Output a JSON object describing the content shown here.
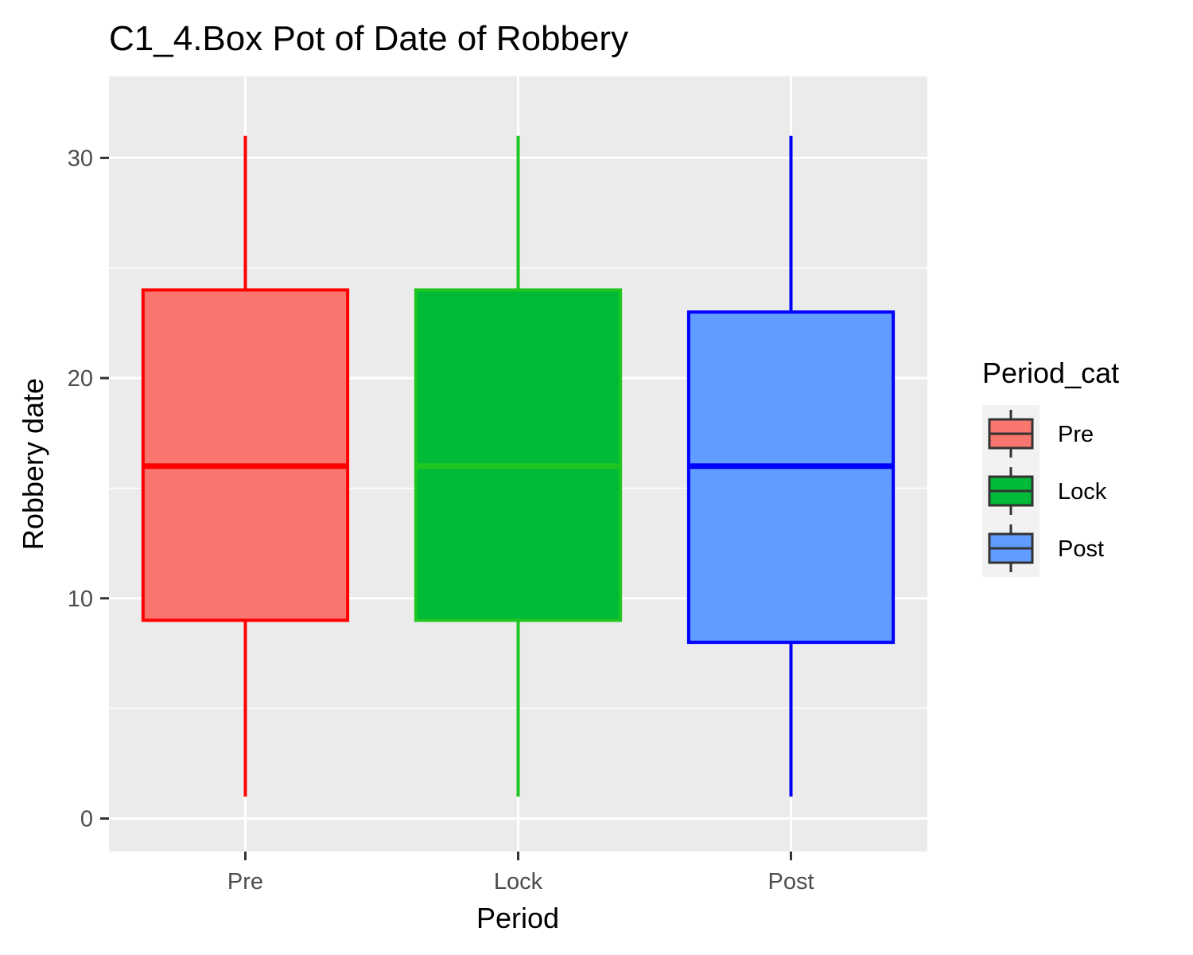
{
  "chart_data": {
    "type": "box",
    "title": "C1_4.Box Pot of Date of Robbery",
    "xlabel": "Period",
    "ylabel": "Robbery date",
    "categories": [
      "Pre",
      "Lock",
      "Post"
    ],
    "ylim": [
      -1.5,
      33.7
    ],
    "yticks": [
      0,
      10,
      20,
      30
    ],
    "grid": true,
    "legend": {
      "title": "Period_cat",
      "position": "right",
      "entries": [
        "Pre",
        "Lock",
        "Post"
      ]
    },
    "series": [
      {
        "name": "Pre",
        "min": 1,
        "q1": 9,
        "median": 16,
        "q3": 24,
        "max": 31,
        "fill": "#F8766D",
        "stroke": "#FF0000"
      },
      {
        "name": "Lock",
        "min": 1,
        "q1": 9,
        "median": 16,
        "q3": 24,
        "max": 31,
        "fill": "#00BA38",
        "stroke": "#1FC61F"
      },
      {
        "name": "Post",
        "min": 1,
        "q1": 8,
        "median": 16,
        "q3": 23,
        "max": 31,
        "fill": "#619CFF",
        "stroke": "#0000FF"
      }
    ],
    "colors": {
      "panel_background": "#EBEBEB",
      "grid_line": "#FFFFFF",
      "legend_key_background": "#F2F2F2",
      "legend_key_stroke": "#333333"
    }
  }
}
